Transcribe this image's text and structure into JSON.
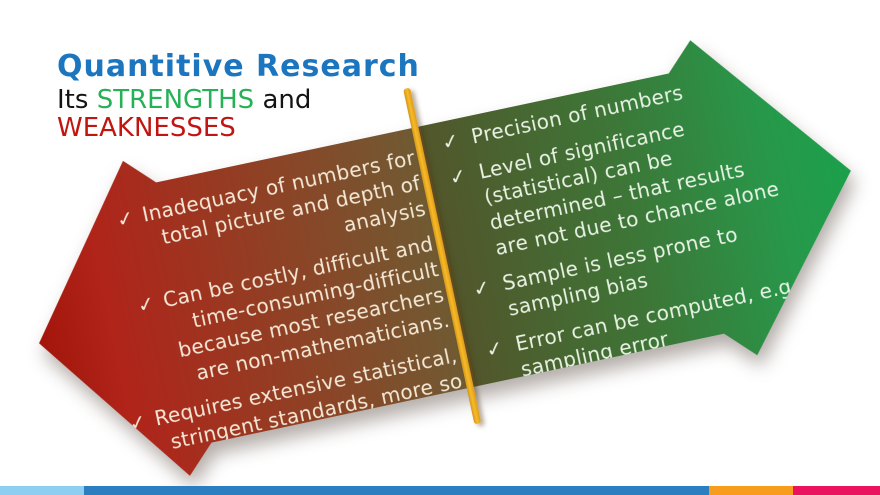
{
  "title": {
    "text": "Quantitive Research",
    "color": "#1b76bf"
  },
  "subtitle": {
    "prefix": "Its ",
    "strengths": "STRENGTHS",
    "conjunction": " and",
    "weaknesses": "WEAKNESSES",
    "strengths_color": "#27b157",
    "weaknesses_color": "#c11511",
    "base_color": "#141414"
  },
  "check_glyph": "✓",
  "weaknesses": {
    "items": [
      "Inadequacy of numbers for\ntotal picture and depth of\nanalysis",
      "Can be costly, difficult and\ntime-consuming-difficult\nbecause most researchers\nare non-mathematicians.",
      "Requires extensive statistical,\nstringent standards, more so"
    ]
  },
  "strengths": {
    "items": [
      "Precision of numbers",
      "Level of significance\n(statistical) can be\ndetermined – that results\nare not due to chance alone",
      "Sample is less prone to\nsampling bias",
      "Error can be computed, e.g\nsampling error"
    ]
  },
  "divider": {
    "color": "#f2b21f"
  },
  "arrow_colors": {
    "red_start": "#a3150a",
    "red_end": "#6e5c33",
    "green_start": "#52562b",
    "green_end": "#1ba04b",
    "text_left": "#f4e9d7",
    "text_right": "#e9f3e5"
  },
  "bottom_bar": {
    "segments": [
      {
        "name": "light-blue",
        "color": "#8ecef1"
      },
      {
        "name": "blue",
        "color": "#2b7fc0"
      },
      {
        "name": "orange",
        "color": "#f89c1e"
      },
      {
        "name": "pink",
        "color": "#e9135f"
      }
    ]
  }
}
